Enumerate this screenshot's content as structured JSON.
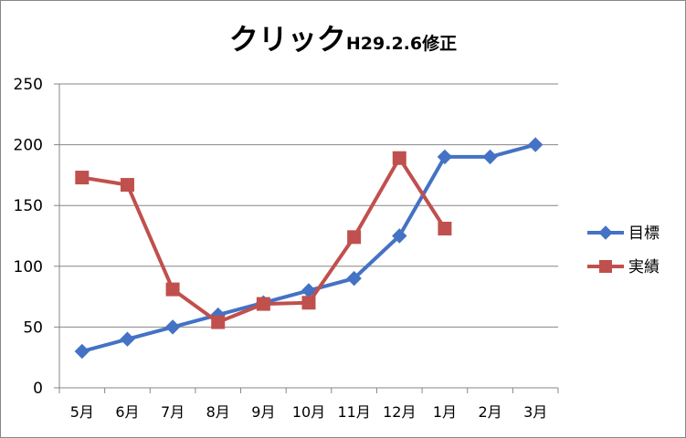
{
  "chart_data": {
    "type": "line",
    "title": "クリック",
    "subtitle": "H29.2.6修正",
    "categories": [
      "5月",
      "6月",
      "7月",
      "8月",
      "9月",
      "10月",
      "11月",
      "12月",
      "1月",
      "2月",
      "3月"
    ],
    "series": [
      {
        "name": "目標",
        "values": [
          30,
          40,
          50,
          60,
          70,
          80,
          90,
          125,
          190,
          190,
          200
        ],
        "color": "#4472C4",
        "marker": "diamond"
      },
      {
        "name": "実績",
        "values": [
          173,
          167,
          81,
          54,
          69,
          70,
          124,
          189,
          131,
          null,
          null
        ],
        "color": "#C0504D",
        "marker": "square"
      }
    ],
    "ylim": [
      0,
      250
    ],
    "yticks": [
      0,
      50,
      100,
      150,
      200,
      250
    ],
    "grid": true,
    "legend": "right"
  }
}
